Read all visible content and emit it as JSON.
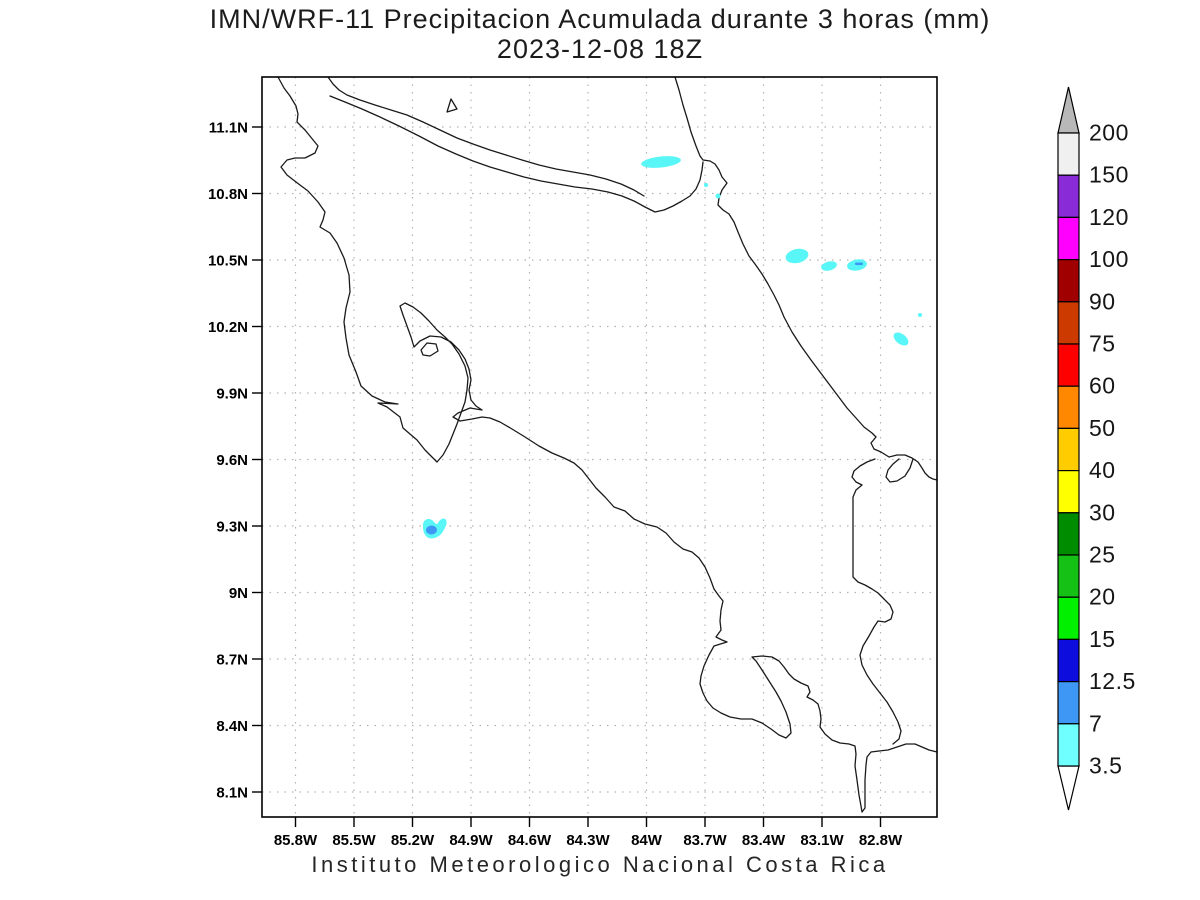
{
  "title": {
    "line1": "IMN/WRF-11 Precipitacion Acumulada durante 3 horas (mm)",
    "line2": "2023-12-08 18Z"
  },
  "caption": "Instituto Meteorologico Nacional Costa Rica",
  "axes": {
    "lat_labels": [
      "11.1N",
      "10.8N",
      "10.5N",
      "10.2N",
      "9.9N",
      "9.6N",
      "9.3N",
      "9N",
      "8.7N",
      "8.4N",
      "8.1N"
    ],
    "lon_labels": [
      "85.8W",
      "85.5W",
      "85.2W",
      "84.9W",
      "84.6W",
      "84.3W",
      "84W",
      "83.7W",
      "83.4W",
      "83.1W",
      "82.8W"
    ]
  },
  "colorbar": {
    "labels": [
      "200",
      "150",
      "120",
      "100",
      "90",
      "75",
      "60",
      "50",
      "40",
      "30",
      "25",
      "20",
      "15",
      "12.5",
      "7",
      "3.5"
    ],
    "box_colors": [
      "#f0f0f0",
      "#8a2bd8",
      "#ff00ff",
      "#a00000",
      "#cc3a00",
      "#ff0000",
      "#ff8800",
      "#ffcc00",
      "#ffff00",
      "#008c00",
      "#14c114",
      "#00f000",
      "#0d0ddd",
      "#3e97f5",
      "#70ffff"
    ],
    "over_color": "#b8b8b8",
    "under_color": "#ffffff"
  },
  "colors": {
    "precip_light": "#58f6f6",
    "precip_medium": "#3e97f5",
    "coastline": "#1a1a1a",
    "grid": "#b3b3b3"
  },
  "chart_data": {
    "type": "map",
    "title": "IMN/WRF-11 Precipitacion Acumulada durante 3 horas (mm)",
    "valid_time": "2023-12-08 18Z",
    "region": "Costa Rica",
    "lat_ticks_n": [
      11.1,
      10.8,
      10.5,
      10.2,
      9.9,
      9.6,
      9.3,
      9.0,
      8.7,
      8.4,
      8.1
    ],
    "lon_ticks_w": [
      85.8,
      85.5,
      85.2,
      84.9,
      84.6,
      84.3,
      84.0,
      83.7,
      83.4,
      83.1,
      82.8
    ],
    "grid": true,
    "colorbar_levels_mm": [
      3.5,
      7,
      12.5,
      15,
      20,
      25,
      30,
      40,
      50,
      60,
      75,
      90,
      100,
      120,
      150,
      200
    ],
    "units": "mm",
    "precip_patches": [
      {
        "lat_n": 10.94,
        "lon_w": 83.93,
        "range_mm": "3.5-7"
      },
      {
        "lat_n": 10.84,
        "lon_w": 83.7,
        "range_mm": "3.5-7"
      },
      {
        "lat_n": 10.51,
        "lon_w": 83.23,
        "range_mm": "3.5-7"
      },
      {
        "lat_n": 10.48,
        "lon_w": 83.06,
        "range_mm": "3.5-7"
      },
      {
        "lat_n": 10.47,
        "lon_w": 82.92,
        "range_mm": "3.5-12.5"
      },
      {
        "lat_n": 10.25,
        "lon_w": 82.6,
        "range_mm": "3.5-7"
      },
      {
        "lat_n": 10.14,
        "lon_w": 82.69,
        "range_mm": "3.5-7"
      },
      {
        "lat_n": 9.29,
        "lon_w": 85.09,
        "range_mm": "3.5-12.5"
      }
    ]
  }
}
